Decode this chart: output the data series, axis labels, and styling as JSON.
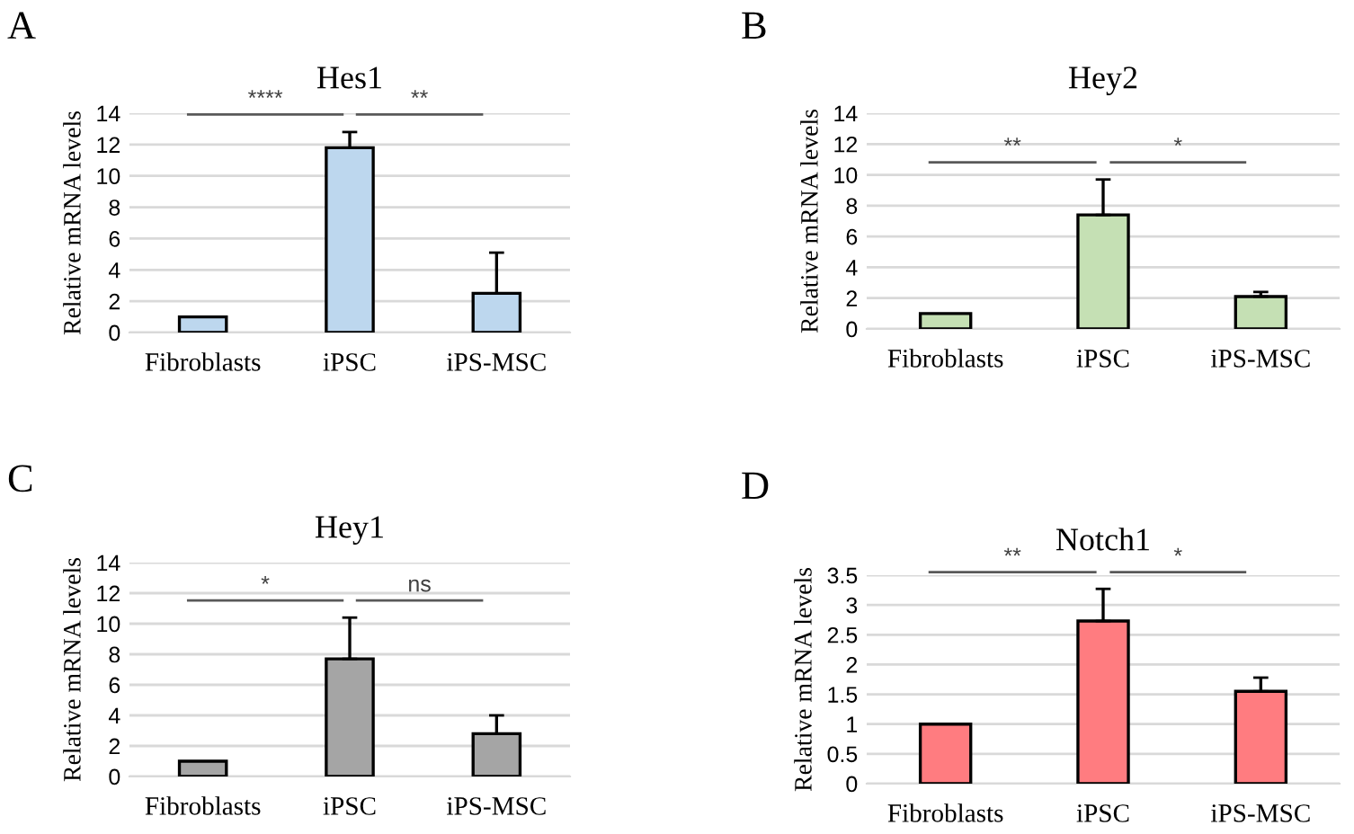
{
  "chart_data": [
    {
      "type": "bar",
      "title": "Hes1",
      "ylabel": "Relative mRNA levels",
      "categories": [
        "Fibroblasts",
        "iPSC",
        "iPS-MSC"
      ],
      "values": [
        1,
        11.8,
        2.5
      ],
      "errors": [
        null,
        [
          11.8,
          12.8
        ],
        [
          2.5,
          5.1
        ]
      ],
      "color": "#bdd7ee",
      "ylim": [
        0,
        14
      ],
      "yticks": [
        0,
        2,
        4,
        6,
        8,
        10,
        12,
        14
      ],
      "grid": "y",
      "annotations": [
        "A",
        "****",
        "**"
      ]
    },
    {
      "type": "bar",
      "title": "Hey2",
      "ylabel": "Relative mRNA levels",
      "categories": [
        "Fibroblasts",
        "iPSC",
        "iPS-MSC"
      ],
      "values": [
        1,
        7.4,
        2.1
      ],
      "errors": [
        null,
        [
          7.4,
          9.7
        ],
        [
          2.1,
          2.4
        ]
      ],
      "color": "#c5e0b4",
      "ylim": [
        0,
        14
      ],
      "yticks": [
        0,
        2,
        4,
        6,
        8,
        10,
        12,
        14
      ],
      "grid": "y",
      "annotations": [
        "B",
        "**",
        "*"
      ]
    },
    {
      "type": "bar",
      "title": "Hey1",
      "ylabel": "Relative mRNA levels",
      "categories": [
        "Fibroblasts",
        "iPSC",
        "iPS-MSC"
      ],
      "values": [
        1,
        7.7,
        2.8
      ],
      "errors": [
        null,
        [
          7.7,
          10.4
        ],
        [
          2.8,
          4.0
        ]
      ],
      "color": "#a5a5a5",
      "ylim": [
        0,
        14
      ],
      "yticks": [
        0,
        2,
        4,
        6,
        8,
        10,
        12,
        14
      ],
      "grid": "y",
      "annotations": [
        "C",
        "*",
        "ns"
      ]
    },
    {
      "type": "bar",
      "title": "Notch1",
      "ylabel": "Relative mRNA levels",
      "categories": [
        "Fibroblasts",
        "iPSC",
        "iPS-MSC"
      ],
      "values": [
        1,
        2.73,
        1.55
      ],
      "errors": [
        null,
        [
          2.73,
          3.27
        ],
        [
          1.55,
          1.78
        ]
      ],
      "color": "#ff7c80",
      "ylim": [
        0,
        3.5
      ],
      "yticks": [
        0,
        0.5,
        1,
        1.5,
        2,
        2.5,
        3,
        3.5
      ],
      "grid": "y",
      "annotations": [
        "D",
        "**",
        "*"
      ]
    }
  ]
}
